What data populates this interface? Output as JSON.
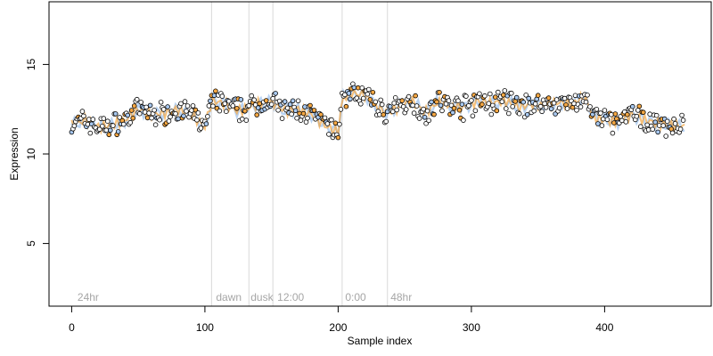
{
  "chart_data": {
    "type": "scatter",
    "title": "",
    "xlabel": "Sample index",
    "ylabel": "Expression",
    "xlim": [
      -17,
      480
    ],
    "ylim": [
      1.5,
      18.5
    ],
    "x_ticks": [
      0,
      100,
      200,
      300,
      400
    ],
    "y_ticks": [
      5,
      10,
      15
    ],
    "grid": false,
    "legend": "none",
    "point_colors": {
      "default": "#000000",
      "dark_fill": "#ffffff",
      "light_fill": "#ffffff",
      "orange_fill": "#f5a742",
      "blue_fill": "#a8c8ef"
    },
    "separator_color": "#d9d9d9",
    "region_lines": [
      105,
      133,
      151,
      203,
      237
    ],
    "region_labels": [
      {
        "x": 3,
        "label": "24hr"
      },
      {
        "x": 107,
        "label": "dawn"
      },
      {
        "x": 133,
        "label": "dusk"
      },
      {
        "x": 153,
        "label": "12:00"
      },
      {
        "x": 204,
        "label": "0:00"
      },
      {
        "x": 238,
        "label": "48hr"
      }
    ],
    "trend": [
      [
        0,
        11.6
      ],
      [
        10,
        11.9
      ],
      [
        20,
        11.5
      ],
      [
        30,
        11.6
      ],
      [
        40,
        11.9
      ],
      [
        50,
        12.5
      ],
      [
        60,
        12.2
      ],
      [
        70,
        12.3
      ],
      [
        80,
        12.5
      ],
      [
        90,
        12.2
      ],
      [
        100,
        11.5
      ],
      [
        105,
        13.0
      ],
      [
        115,
        12.8
      ],
      [
        125,
        12.4
      ],
      [
        133,
        12.6
      ],
      [
        140,
        12.8
      ],
      [
        151,
        12.9
      ],
      [
        160,
        12.4
      ],
      [
        170,
        12.5
      ],
      [
        180,
        12.2
      ],
      [
        190,
        11.6
      ],
      [
        200,
        11.2
      ],
      [
        203,
        13.1
      ],
      [
        210,
        13.4
      ],
      [
        220,
        13.3
      ],
      [
        230,
        12.6
      ],
      [
        237,
        12.3
      ],
      [
        245,
        12.6
      ],
      [
        255,
        13.0
      ],
      [
        265,
        12.3
      ],
      [
        275,
        12.9
      ],
      [
        285,
        12.7
      ],
      [
        295,
        12.6
      ],
      [
        305,
        13.0
      ],
      [
        315,
        12.8
      ],
      [
        325,
        13.0
      ],
      [
        335,
        12.6
      ],
      [
        345,
        12.8
      ],
      [
        355,
        12.7
      ],
      [
        365,
        12.9
      ],
      [
        375,
        12.8
      ],
      [
        385,
        13.2
      ],
      [
        392,
        12.0
      ],
      [
        400,
        11.9
      ],
      [
        410,
        11.8
      ],
      [
        420,
        12.2
      ],
      [
        430,
        11.9
      ],
      [
        440,
        11.7
      ],
      [
        450,
        11.6
      ],
      [
        462,
        11.5
      ]
    ],
    "n_points": 460,
    "series_note": "Expression value per sample index, points fluctuating around the trend"
  }
}
